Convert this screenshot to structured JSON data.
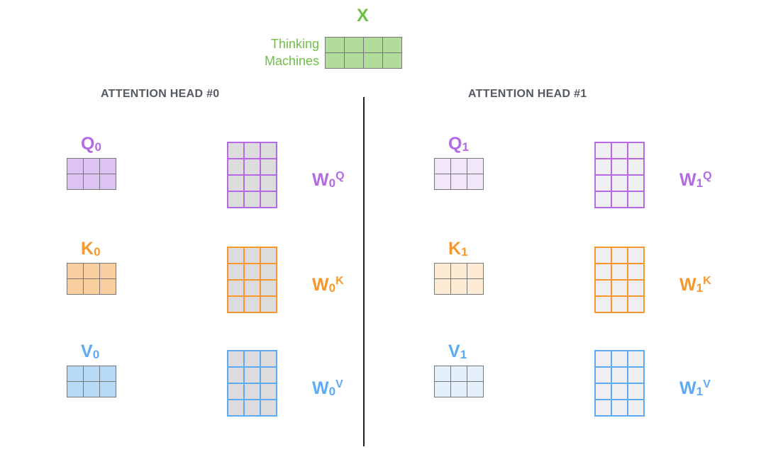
{
  "input": {
    "label": "X",
    "words": [
      "Thinking",
      "Machines"
    ],
    "color": "#6dc045",
    "fill": "#b2dc9a"
  },
  "heads": [
    {
      "title": "ATTENTION HEAD #0",
      "index": "0",
      "rows": [
        {
          "name": "Q",
          "w_sup": "Q",
          "color": "#b36ae2",
          "fill": "#ddc3f2",
          "w_fill": "#dcdcdc"
        },
        {
          "name": "K",
          "w_sup": "K",
          "color": "#f7982f",
          "fill": "#f9cf9f",
          "w_fill": "#dcdcdc"
        },
        {
          "name": "V",
          "w_sup": "V",
          "color": "#5eaaf5",
          "fill": "#b9d9f9",
          "w_fill": "#dcdcdc"
        }
      ]
    },
    {
      "title": "ATTENTION HEAD #1",
      "index": "1",
      "rows": [
        {
          "name": "Q",
          "w_sup": "Q",
          "color": "#b36ae2",
          "fill": "#f1e6fa",
          "w_fill": "#efeff1"
        },
        {
          "name": "K",
          "w_sup": "K",
          "color": "#f7982f",
          "fill": "#fdebd6",
          "w_fill": "#efeff1"
        },
        {
          "name": "V",
          "w_sup": "V",
          "color": "#5eaaf5",
          "fill": "#e4f0fc",
          "w_fill": "#efeff1"
        }
      ]
    }
  ],
  "w_label": "W"
}
